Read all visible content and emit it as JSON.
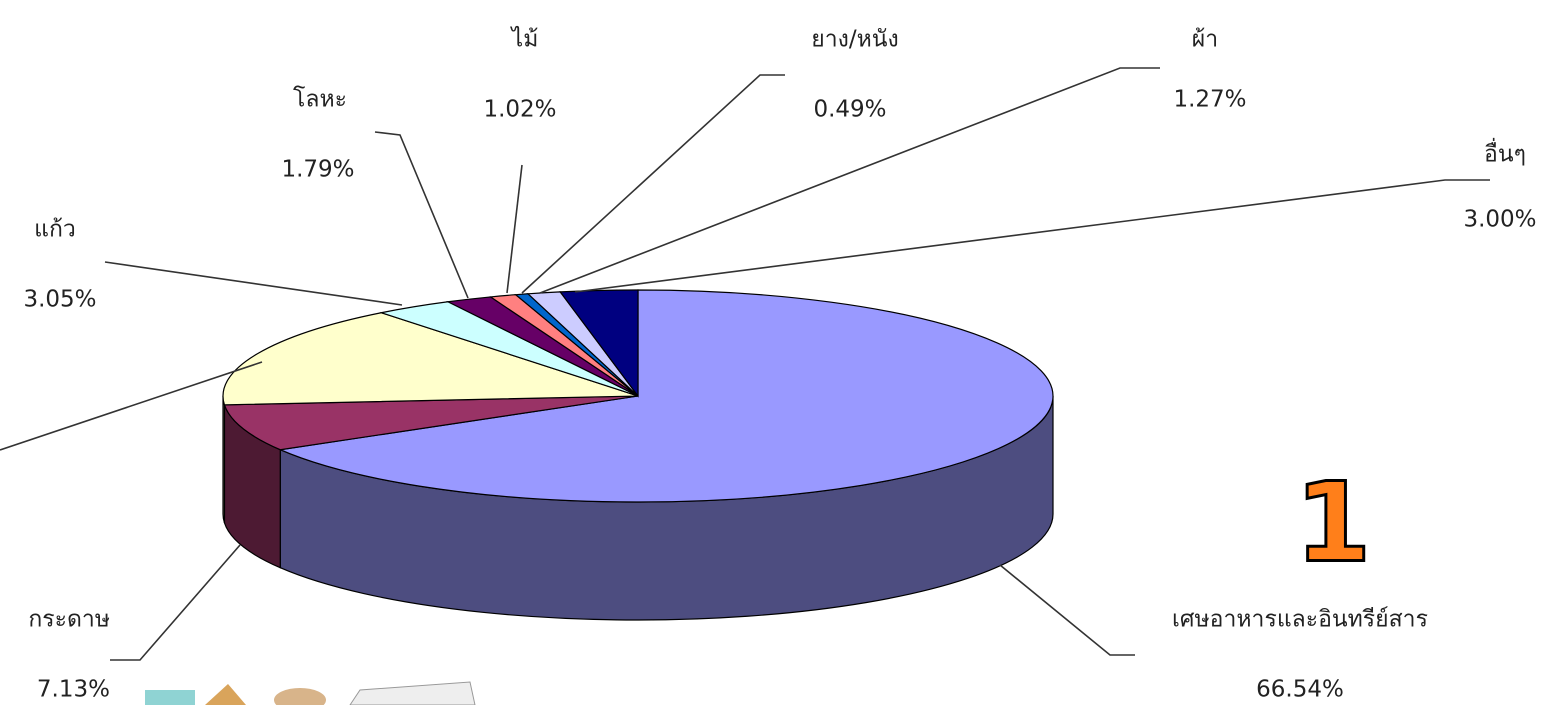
{
  "chart_data": {
    "type": "pie3d",
    "categories": [
      "เศษอาหารและอินทรีย์สาร",
      "กระดาษ",
      null,
      "แก้ว",
      "โลหะ",
      "ไม้",
      "ยาง/หนัง",
      "ผ้า",
      "อื่นๆ"
    ],
    "values": [
      66.54,
      7.13,
      15.71,
      3.05,
      1.79,
      1.02,
      0.49,
      1.27,
      3.0
    ],
    "value_labels": [
      "66.54%",
      "7.13%",
      null,
      "3.05%",
      "1.79%",
      "1.02%",
      "0.49%",
      "1.27%",
      "3.00%"
    ],
    "colors": [
      "#9999ff",
      "#993366",
      "#ffffcc",
      "#ccffff",
      "#660066",
      "#ff8080",
      "#0066cc",
      "#ccccff",
      "#000080"
    ],
    "side_colors": [
      "#4d4d80",
      "#4d1a33",
      "#80806a",
      "#6a8080",
      "#330033",
      "#804040",
      "#003366",
      "#6a6a80",
      "#000040"
    ]
  },
  "badge": "1"
}
